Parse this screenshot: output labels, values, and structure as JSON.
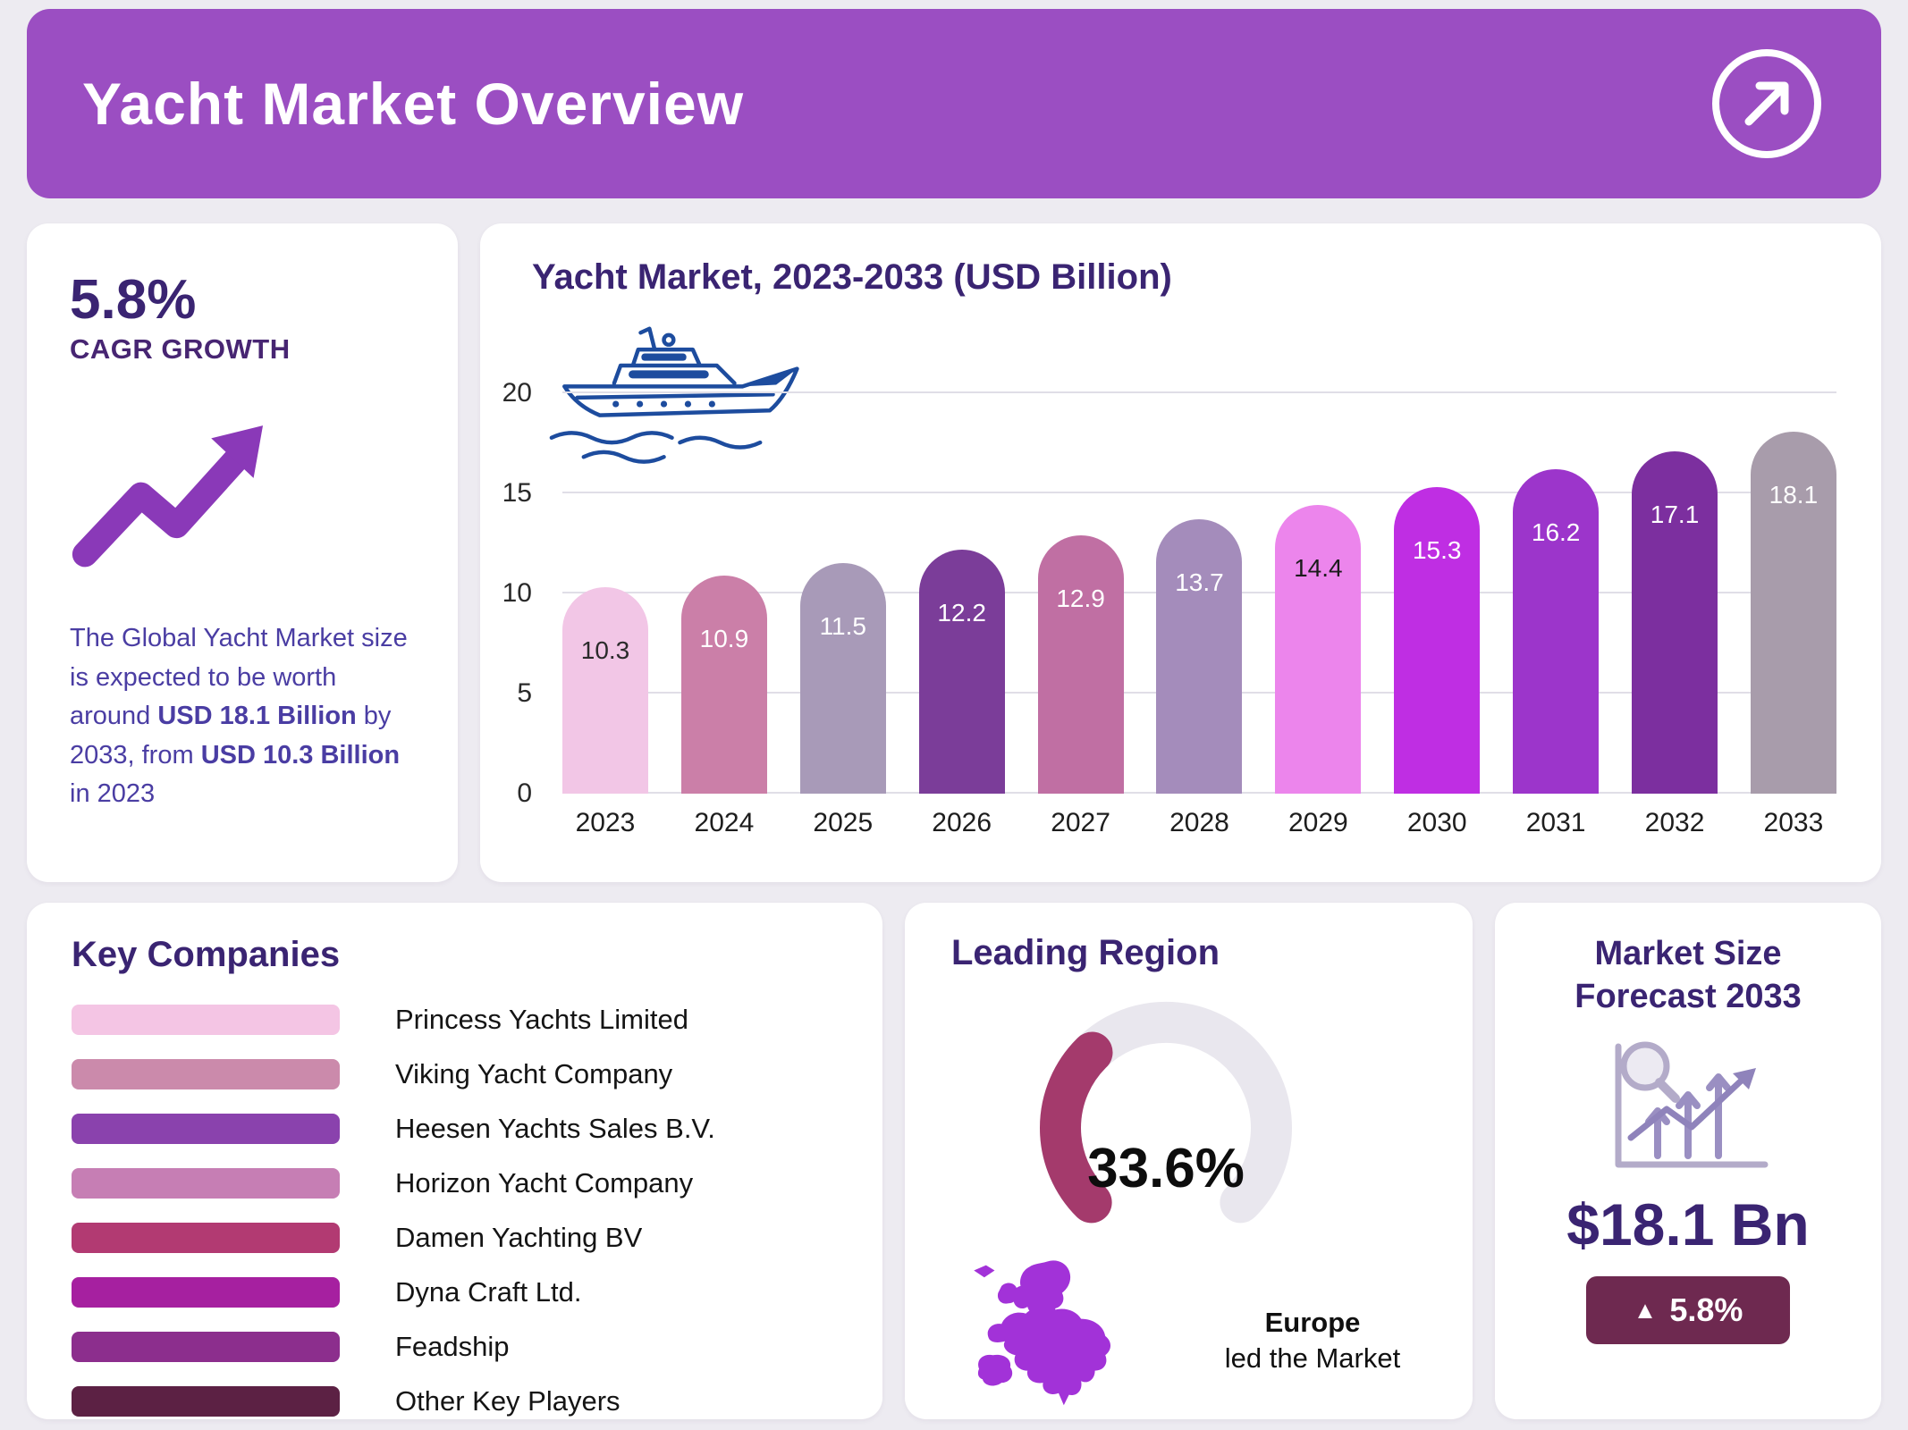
{
  "header": {
    "title": "Yacht Market Overview"
  },
  "colors": {
    "page_bg": "#edebf1",
    "header_bg": "#9b4ec2",
    "heading_text": "#3a2472",
    "accent_purple": "#8a39b8",
    "yacht_blue": "#1d4c9e"
  },
  "cagr_card": {
    "value": "5.8%",
    "label": "CAGR GROWTH",
    "description_parts": [
      {
        "text": "The Global Yacht Market size is expected to be worth around ",
        "bold": false
      },
      {
        "text": "USD 18.1 Billion",
        "bold": true
      },
      {
        "text": " by 2033, from ",
        "bold": false
      },
      {
        "text": "USD 10.3 Billion",
        "bold": true
      },
      {
        "text": " in 2023",
        "bold": false
      }
    ]
  },
  "chart_data": [
    {
      "type": "bar",
      "title": "Yacht Market, 2023-2033 (USD Billion)",
      "categories": [
        "2023",
        "2024",
        "2025",
        "2026",
        "2027",
        "2028",
        "2029",
        "2030",
        "2031",
        "2032",
        "2033"
      ],
      "values": [
        10.3,
        10.9,
        11.5,
        12.2,
        12.9,
        13.7,
        14.4,
        15.3,
        16.2,
        17.1,
        18.1
      ],
      "bar_colors": [
        "#f2c6e6",
        "#cb7fa8",
        "#a89ab8",
        "#7b3d99",
        "#c06fa3",
        "#a48cbb",
        "#ec85ec",
        "#bf2ee3",
        "#9c35cb",
        "#7c2f9f",
        "#a89cab"
      ],
      "value_label_colors": [
        "#2b2b2b",
        "#ffffff",
        "#ffffff",
        "#ffffff",
        "#ffffff",
        "#ffffff",
        "#1b1b1b",
        "#ffffff",
        "#ffffff",
        "#ffffff",
        "#ffffff"
      ],
      "xlabel": "",
      "ylabel": "",
      "ylim": [
        0,
        20
      ],
      "yticks": [
        0,
        5,
        10,
        15,
        20
      ],
      "grid": true,
      "legend": false
    },
    {
      "type": "gauge",
      "label": "Leading Region",
      "value_percent": 33.6,
      "display_text": "33.6%",
      "region": "Europe",
      "caption": "led the Market",
      "arc_color": "#a43a6c",
      "track_color": "#e9e7ee",
      "arc_span_degrees": 270
    }
  ],
  "key_companies": {
    "title": "Key Companies",
    "items": [
      {
        "label": "Princess Yachts Limited",
        "color": "#f4c5e4"
      },
      {
        "label": "Viking Yacht Company",
        "color": "#cb8aab"
      },
      {
        "label": "Heesen Yachts Sales B.V.",
        "color": "#8a42ad"
      },
      {
        "label": "Horizon Yacht Company",
        "color": "#c67eb4"
      },
      {
        "label": "Damen Yachting BV",
        "color": "#b23a72"
      },
      {
        "label": "Dyna Craft Ltd.",
        "color": "#a620a0"
      },
      {
        "label": "Feadship",
        "color": "#8c2e8d"
      },
      {
        "label": "Other Key Players",
        "color": "#5c2144"
      }
    ]
  },
  "market_size_card": {
    "title": "Market Size Forecast 2033",
    "value": "$18.1 Bn",
    "growth_badge": "5.8%",
    "badge_color": "#6e2950"
  }
}
